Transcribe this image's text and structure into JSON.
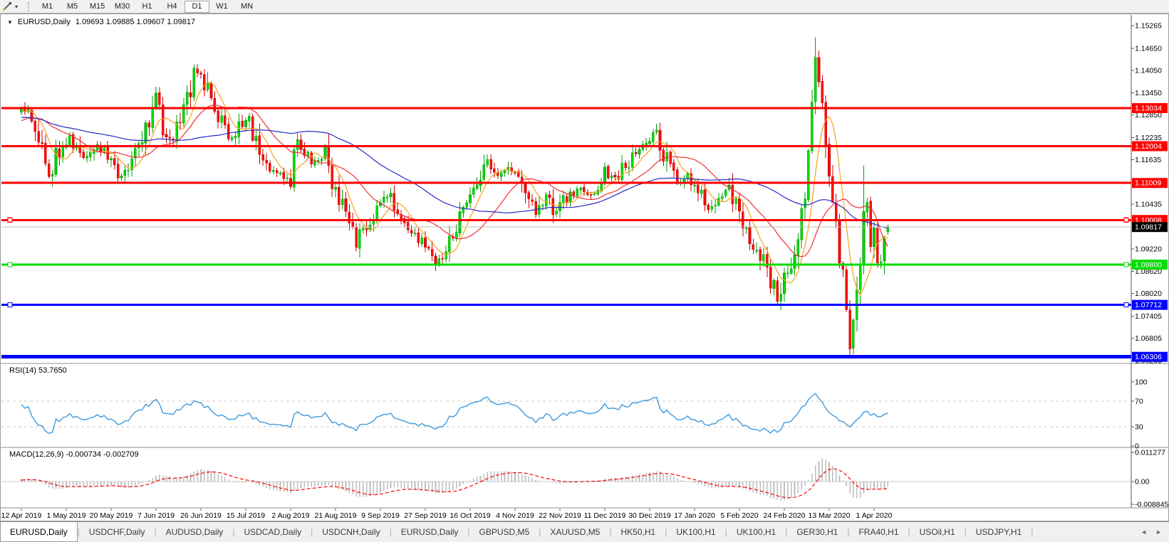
{
  "toolbar": {
    "tool_icon": "chart-drawing-tool",
    "dropdown_icon": "▾",
    "timeframes": [
      "M1",
      "M5",
      "M15",
      "M30",
      "H1",
      "H4",
      "D1",
      "W1",
      "MN"
    ],
    "active_timeframe": "D1"
  },
  "chart_title": {
    "collapse_icon": "▼",
    "symbol_period": "EURUSD,Daily",
    "ohlc": "1.09693 1.09885 1.09607 1.09817"
  },
  "chart_data": {
    "type": "candlestick",
    "symbol": "EURUSD",
    "timeframe": "Daily",
    "quote": {
      "open": 1.09693,
      "high": 1.09885,
      "low": 1.09607,
      "close": 1.09817
    },
    "x_labels": [
      "12 Apr 2019",
      "1 May 2019",
      "20 May 2019",
      "7 Jun 2019",
      "26 Jun 2019",
      "15 Jul 2019",
      "2 Aug 2019",
      "21 Aug 2019",
      "9 Sep 2019",
      "27 Sep 2019",
      "16 Oct 2019",
      "4 Nov 2019",
      "22 Nov 2019",
      "11 Dec 2019",
      "30 Dec 2019",
      "17 Jan 2020",
      "5 Feb 2020",
      "24 Feb 2020",
      "13 Mar 2020",
      "1 Apr 2020"
    ],
    "bars_per_label": 13,
    "bar_count": 252,
    "axis_range": {
      "top": 1.15554,
      "bottom": 1.06146
    },
    "price_ticks": [
      {
        "label": "1.15265",
        "value": 1.15265
      },
      {
        "label": "1.14650",
        "value": 1.1465
      },
      {
        "label": "1.14050",
        "value": 1.1405
      },
      {
        "label": "1.13450",
        "value": 1.1345
      },
      {
        "label": "1.12850",
        "value": 1.1285
      },
      {
        "label": "1.12235",
        "value": 1.12235
      },
      {
        "label": "1.11635",
        "value": 1.11635
      },
      {
        "label": "1.10435",
        "value": 1.10435
      },
      {
        "label": "1.09220",
        "value": 1.0922
      },
      {
        "label": "1.08620",
        "value": 1.0862
      },
      {
        "label": "1.08020",
        "value": 1.0802
      },
      {
        "label": "1.07405",
        "value": 1.07405
      },
      {
        "label": "1.06805",
        "value": 1.06805
      },
      {
        "label": "1.06205",
        "value": 1.06205
      }
    ],
    "h_lines": [
      {
        "label": "1.13034",
        "price": 1.13034,
        "color": "#FF0000",
        "width": 3,
        "handles": false
      },
      {
        "label": "1.12004",
        "price": 1.12004,
        "color": "#FF0000",
        "width": 3,
        "handles": false
      },
      {
        "label": "1.11009",
        "price": 1.11009,
        "color": "#FF0000",
        "width": 3,
        "handles": false
      },
      {
        "label": "1.10008",
        "price": 1.10008,
        "color": "#FF0000",
        "width": 3,
        "handles": true
      },
      {
        "label": "1.08800",
        "price": 1.088,
        "color": "#00DC00",
        "width": 3,
        "handles": true
      },
      {
        "label": "1.07712",
        "price": 1.07712,
        "color": "#0000FF",
        "width": 3,
        "handles": true
      },
      {
        "label": "1.06306",
        "price": 1.06306,
        "color": "#0000FF",
        "width": 5,
        "handles": false
      }
    ],
    "current_price": {
      "label": "1.09817",
      "value": 1.09817,
      "line_color": "#BEBEBE",
      "badge_bg": "#000000",
      "badge_fg": "#FFFFFF"
    },
    "candles": {
      "up_color": "#00A000",
      "up_fill": "#00DB00",
      "down_color": "#CC0000",
      "down_fill": "#FF0F0F"
    },
    "moving_averages": [
      {
        "name": "fast-ma",
        "period": 7,
        "color": "#F7A21B"
      },
      {
        "name": "mid-ma",
        "period": 19,
        "color": "#F03030"
      },
      {
        "name": "slow-ma",
        "period": 52,
        "color": "#2A2AC8"
      }
    ],
    "pre_history_anchors": [
      [
        -60,
        1.1235
      ],
      [
        -45,
        1.1332
      ],
      [
        -30,
        1.1268
      ],
      [
        -18,
        1.1224
      ],
      [
        -8,
        1.1281
      ],
      [
        -1,
        1.13
      ]
    ],
    "price_path_anchors": [
      [
        0,
        1.1302
      ],
      [
        4,
        1.1268
      ],
      [
        8,
        1.112
      ],
      [
        11,
        1.119
      ],
      [
        14,
        1.1228
      ],
      [
        18,
        1.1162
      ],
      [
        22,
        1.1205
      ],
      [
        26,
        1.1168
      ],
      [
        29,
        1.1118
      ],
      [
        33,
        1.1182
      ],
      [
        36,
        1.1258
      ],
      [
        39,
        1.1332
      ],
      [
        42,
        1.1208
      ],
      [
        46,
        1.1262
      ],
      [
        50,
        1.1398
      ],
      [
        53,
        1.1372
      ],
      [
        57,
        1.1288
      ],
      [
        61,
        1.1222
      ],
      [
        65,
        1.1278
      ],
      [
        68,
        1.1222
      ],
      [
        71,
        1.1142
      ],
      [
        75,
        1.1128
      ],
      [
        78,
        1.1108
      ],
      [
        80,
        1.1202
      ],
      [
        84,
        1.1162
      ],
      [
        88,
        1.1178
      ],
      [
        91,
        1.1082
      ],
      [
        94,
        1.1002
      ],
      [
        97,
        1.0932
      ],
      [
        100,
        1.0992
      ],
      [
        104,
        1.1042
      ],
      [
        107,
        1.1068
      ],
      [
        110,
        1.0998
      ],
      [
        114,
        1.0962
      ],
      [
        118,
        1.0928
      ],
      [
        121,
        1.0886
      ],
      [
        125,
        1.0972
      ],
      [
        128,
        1.1032
      ],
      [
        131,
        1.1078
      ],
      [
        135,
        1.1158
      ],
      [
        139,
        1.1122
      ],
      [
        143,
        1.1142
      ],
      [
        146,
        1.1068
      ],
      [
        149,
        1.1018
      ],
      [
        152,
        1.1072
      ],
      [
        155,
        1.1018
      ],
      [
        158,
        1.1062
      ],
      [
        162,
        1.1082
      ],
      [
        166,
        1.1072
      ],
      [
        169,
        1.1138
      ],
      [
        172,
        1.1112
      ],
      [
        175,
        1.1148
      ],
      [
        178,
        1.1192
      ],
      [
        181,
        1.1208
      ],
      [
        184,
        1.1232
      ],
      [
        187,
        1.1158
      ],
      [
        190,
        1.1108
      ],
      [
        193,
        1.1122
      ],
      [
        196,
        1.1088
      ],
      [
        199,
        1.1032
      ],
      [
        202,
        1.1068
      ],
      [
        205,
        1.1088
      ],
      [
        208,
        1.1002
      ],
      [
        211,
        1.0948
      ],
      [
        214,
        1.0902
      ],
      [
        217,
        1.0838
      ],
      [
        219,
        1.0788
      ],
      [
        221,
        1.0852
      ],
      [
        223,
        1.0882
      ],
      [
        225,
        1.0942
      ],
      [
        227,
        1.1088
      ],
      [
        228,
        1.1182
      ],
      [
        229,
        1.1292
      ],
      [
        230,
        1.1442
      ],
      [
        231,
        1.1382
      ],
      [
        232,
        1.1292
      ],
      [
        233,
        1.1182
      ],
      [
        234,
        1.1112
      ],
      [
        235,
        1.1062
      ],
      [
        236,
        1.0982
      ],
      [
        237,
        1.0908
      ],
      [
        238,
        1.0882
      ],
      [
        239,
        1.0742
      ],
      [
        240,
        1.0662
      ],
      [
        241,
        1.0722
      ],
      [
        242,
        1.0792
      ],
      [
        243,
        1.0882
      ],
      [
        244,
        1.1052
      ],
      [
        245,
        1.1022
      ],
      [
        246,
        1.0958
      ],
      [
        247,
        1.0948
      ],
      [
        248,
        1.0902
      ],
      [
        249,
        1.0868
      ],
      [
        250,
        1.0928
      ],
      [
        251,
        1.0982
      ]
    ],
    "extremes": [
      {
        "index": 230,
        "high": 1.1495
      },
      {
        "index": 240,
        "low": 1.0636
      },
      {
        "index": 244,
        "high": 1.1148
      }
    ],
    "rsi": {
      "label": "RSI(14) 53.7650",
      "period": 14,
      "value": 53.765,
      "color": "#3E9ADE",
      "levels": [
        {
          "label": "100",
          "value": 100,
          "dashed": false
        },
        {
          "label": "70",
          "value": 70,
          "dashed": true
        },
        {
          "label": "30",
          "value": 30,
          "dashed": true
        },
        {
          "label": "0",
          "value": 0,
          "dashed": false
        }
      ]
    },
    "macd": {
      "label": "MACD(12,26,9) -0.000734 -0.002709",
      "fast": 12,
      "slow": 26,
      "signal_period": 9,
      "value": -0.000734,
      "signal_value": -0.002709,
      "histogram_color": "#BDBDBD",
      "signal_color": "#FF0000",
      "zero_line_color": "#C8C8C8",
      "axis_ticks": [
        {
          "label": "0.011277",
          "value": 0.011277
        },
        {
          "label": "0.00",
          "value": 0
        },
        {
          "label": "-0.008845",
          "value": -0.008845
        }
      ]
    }
  },
  "tabs": {
    "separator": "|",
    "scroll_left": "◄",
    "scroll_right": "►",
    "items": [
      {
        "label": "EURUSD,Daily",
        "active": true
      },
      {
        "label": "USDCHF,Daily",
        "active": false
      },
      {
        "label": "AUDUSD,Daily",
        "active": false
      },
      {
        "label": "USDCAD,Daily",
        "active": false
      },
      {
        "label": "USDCNH,Daily",
        "active": false
      },
      {
        "label": "EURUSD,Daily",
        "active": false
      },
      {
        "label": "GBPUSD,M5",
        "active": false
      },
      {
        "label": "XAUUSD,M5",
        "active": false
      },
      {
        "label": "HK50,H1",
        "active": false
      },
      {
        "label": "UK100,H1",
        "active": false
      },
      {
        "label": "UK100,H1",
        "active": false
      },
      {
        "label": "GER30,H1",
        "active": false
      },
      {
        "label": "FRA40,H1",
        "active": false
      },
      {
        "label": "USOil,H1",
        "active": false
      },
      {
        "label": "USDJPY,H1",
        "active": false
      }
    ]
  }
}
